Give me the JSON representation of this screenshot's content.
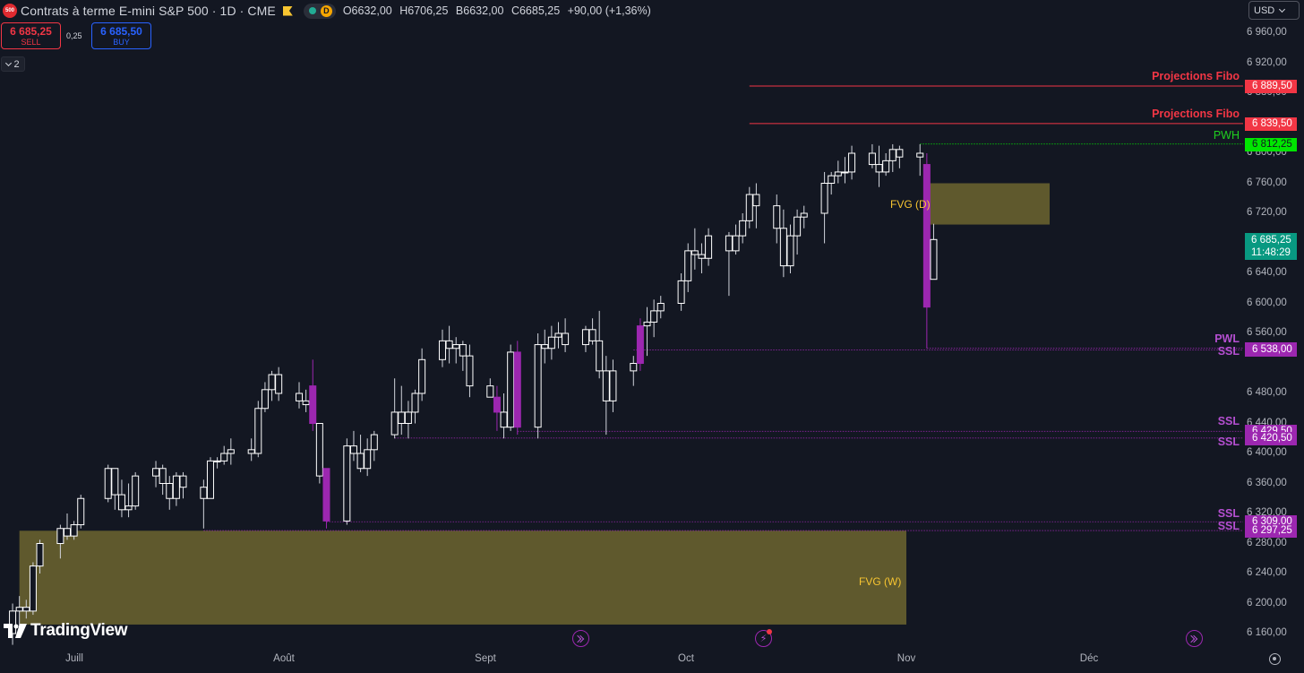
{
  "header": {
    "symbol_logo": "500",
    "title": "Contrats à terme E-mini S&P 500 · 1D · CME",
    "delay_badge": "D",
    "ohlc": {
      "o_label": "O",
      "o": "6632,00",
      "h_label": "H",
      "h": "6706,25",
      "l_label": "B",
      "l": "6632,00",
      "c_label": "C",
      "c": "6685,25",
      "change": "+90,00 (+1,36%)"
    }
  },
  "trade": {
    "sell_price": "6 685,25",
    "sell_label": "SELL",
    "spread": "0,25",
    "buy_price": "6 685,50",
    "buy_label": "BUY"
  },
  "indicators_toggle": "2",
  "currency": "USD",
  "axis": {
    "price_labels": [
      "6 960,00",
      "6 920,00",
      "6 880,00",
      "6 800,00",
      "6 760,00",
      "6 720,00",
      "6 640,00",
      "6 600,00",
      "6 560,00",
      "6 480,00",
      "6 440,00",
      "6 400,00",
      "6 360,00",
      "6 320,00",
      "6 280,00",
      "6 240,00",
      "6 200,00",
      "6 160,00"
    ],
    "time_labels": [
      "Juill",
      "Août",
      "Sept",
      "Oct",
      "Nov",
      "Déc"
    ]
  },
  "levels": [
    {
      "label": "Projections Fibo",
      "price": "6 889,50",
      "color": "#f23645"
    },
    {
      "label": "Projections Fibo",
      "price": "6 839,50",
      "color": "#f23645"
    },
    {
      "label": "PWH",
      "price": "6 812,25",
      "color": "#00ff00"
    },
    {
      "label": "PWL",
      "price": "6 540,25",
      "color": "#9c27b0"
    },
    {
      "label": "SSL",
      "price": "6 538,00",
      "color": "#9c27b0"
    },
    {
      "label": "SSL",
      "price": "6 429,50",
      "color": "#9c27b0"
    },
    {
      "label": "SSL",
      "price": "6 420,50",
      "color": "#9c27b0"
    },
    {
      "label": "SSL",
      "price": "6 309,00",
      "color": "#9c27b0"
    },
    {
      "label": "SSL",
      "price": "6 297,25",
      "color": "#9c27b0"
    }
  ],
  "current": {
    "price": "6 685,25",
    "countdown": "11:48:29",
    "color": "#089981"
  },
  "zones": {
    "fvg_daily": "FVG (D)",
    "fvg_weekly": "FVG (W)"
  },
  "brand": "TradingView",
  "chart_data": {
    "type": "candlestick",
    "timeframe": "1D",
    "ylim": [
      6140,
      6980
    ],
    "x_ticks": [
      "Juill",
      "Août",
      "Sept",
      "Oct",
      "Nov",
      "Déc"
    ],
    "candles": [
      {
        "date": "2025-06-23",
        "o": 6160,
        "h": 6200,
        "l": 6145,
        "c": 6190
      },
      {
        "date": "2025-06-24",
        "o": 6190,
        "h": 6210,
        "l": 6165,
        "c": 6195
      },
      {
        "date": "2025-06-25",
        "o": 6195,
        "h": 6205,
        "l": 6180,
        "c": 6190
      },
      {
        "date": "2025-06-26",
        "o": 6190,
        "h": 6255,
        "l": 6185,
        "c": 6250
      },
      {
        "date": "2025-06-27",
        "o": 6250,
        "h": 6285,
        "l": 6240,
        "c": 6280
      },
      {
        "date": "2025-06-30",
        "o": 6280,
        "h": 6305,
        "l": 6260,
        "c": 6300
      },
      {
        "date": "2025-07-01",
        "o": 6300,
        "h": 6320,
        "l": 6285,
        "c": 6290
      },
      {
        "date": "2025-07-02",
        "o": 6290,
        "h": 6310,
        "l": 6285,
        "c": 6305
      },
      {
        "date": "2025-07-03",
        "o": 6305,
        "h": 6345,
        "l": 6300,
        "c": 6340
      },
      {
        "date": "2025-07-07",
        "o": 6340,
        "h": 6385,
        "l": 6335,
        "c": 6380
      },
      {
        "date": "2025-07-08",
        "o": 6380,
        "h": 6380,
        "l": 6325,
        "c": 6345
      },
      {
        "date": "2025-07-09",
        "o": 6345,
        "h": 6365,
        "l": 6315,
        "c": 6325
      },
      {
        "date": "2025-07-10",
        "o": 6325,
        "h": 6360,
        "l": 6315,
        "c": 6330
      },
      {
        "date": "2025-07-11",
        "o": 6330,
        "h": 6375,
        "l": 6325,
        "c": 6370
      },
      {
        "date": "2025-07-14",
        "o": 6370,
        "h": 6390,
        "l": 6355,
        "c": 6380
      },
      {
        "date": "2025-07-15",
        "o": 6380,
        "h": 6385,
        "l": 6345,
        "c": 6360
      },
      {
        "date": "2025-07-16",
        "o": 6360,
        "h": 6370,
        "l": 6325,
        "c": 6340
      },
      {
        "date": "2025-07-17",
        "o": 6340,
        "h": 6375,
        "l": 6330,
        "c": 6370
      },
      {
        "date": "2025-07-18",
        "o": 6370,
        "h": 6375,
        "l": 6340,
        "c": 6355
      },
      {
        "date": "2025-07-21",
        "o": 6355,
        "h": 6365,
        "l": 6300,
        "c": 6340
      },
      {
        "date": "2025-07-22",
        "o": 6340,
        "h": 6395,
        "l": 6340,
        "c": 6390
      },
      {
        "date": "2025-07-23",
        "o": 6390,
        "h": 6395,
        "l": 6380,
        "c": 6390
      },
      {
        "date": "2025-07-24",
        "o": 6390,
        "h": 6410,
        "l": 6385,
        "c": 6400
      },
      {
        "date": "2025-07-25",
        "o": 6400,
        "h": 6420,
        "l": 6385,
        "c": 6405
      },
      {
        "date": "2025-07-28",
        "o": 6405,
        "h": 6420,
        "l": 6390,
        "c": 6400
      },
      {
        "date": "2025-07-29",
        "o": 6400,
        "h": 6470,
        "l": 6395,
        "c": 6460
      },
      {
        "date": "2025-07-30",
        "o": 6460,
        "h": 6495,
        "l": 6455,
        "c": 6485
      },
      {
        "date": "2025-07-31",
        "o": 6485,
        "h": 6510,
        "l": 6470,
        "c": 6505
      },
      {
        "date": "2025-08-01",
        "o": 6505,
        "h": 6515,
        "l": 6470,
        "c": 6480
      },
      {
        "date": "2025-08-04",
        "o": 6480,
        "h": 6495,
        "l": 6460,
        "c": 6470
      },
      {
        "date": "2025-08-05",
        "o": 6470,
        "h": 6485,
        "l": 6455,
        "c": 6465
      },
      {
        "date": "2025-08-06",
        "o": 6490,
        "h": 6525,
        "l": 6430,
        "c": 6440
      },
      {
        "date": "2025-08-07",
        "o": 6440,
        "h": 6440,
        "l": 6360,
        "c": 6370
      },
      {
        "date": "2025-08-08",
        "o": 6380,
        "h": 6380,
        "l": 6300,
        "c": 6310
      },
      {
        "date": "2025-08-11",
        "o": 6310,
        "h": 6420,
        "l": 6305,
        "c": 6410
      },
      {
        "date": "2025-08-12",
        "o": 6410,
        "h": 6430,
        "l": 6390,
        "c": 6400
      },
      {
        "date": "2025-08-13",
        "o": 6400,
        "h": 6425,
        "l": 6375,
        "c": 6380
      },
      {
        "date": "2025-08-14",
        "o": 6380,
        "h": 6420,
        "l": 6370,
        "c": 6405
      },
      {
        "date": "2025-08-15",
        "o": 6405,
        "h": 6430,
        "l": 6390,
        "c": 6425
      },
      {
        "date": "2025-08-18",
        "o": 6425,
        "h": 6500,
        "l": 6420,
        "c": 6455
      },
      {
        "date": "2025-08-19",
        "o": 6455,
        "h": 6490,
        "l": 6425,
        "c": 6440
      },
      {
        "date": "2025-08-20",
        "o": 6440,
        "h": 6470,
        "l": 6420,
        "c": 6455
      },
      {
        "date": "2025-08-21",
        "o": 6455,
        "h": 6485,
        "l": 6440,
        "c": 6480
      },
      {
        "date": "2025-08-22",
        "o": 6480,
        "h": 6540,
        "l": 6470,
        "c": 6525
      },
      {
        "date": "2025-08-25",
        "o": 6525,
        "h": 6565,
        "l": 6515,
        "c": 6550
      },
      {
        "date": "2025-08-26",
        "o": 6550,
        "h": 6570,
        "l": 6520,
        "c": 6540
      },
      {
        "date": "2025-08-27",
        "o": 6540,
        "h": 6555,
        "l": 6520,
        "c": 6545
      },
      {
        "date": "2025-08-28",
        "o": 6545,
        "h": 6550,
        "l": 6510,
        "c": 6530
      },
      {
        "date": "2025-08-29",
        "o": 6530,
        "h": 6545,
        "l": 6475,
        "c": 6490
      },
      {
        "date": "2025-09-01",
        "o": 6490,
        "h": 6500,
        "l": 6475,
        "c": 6475
      },
      {
        "date": "2025-09-02",
        "o": 6475,
        "h": 6490,
        "l": 6430,
        "c": 6455
      },
      {
        "date": "2025-09-03",
        "o": 6455,
        "h": 6480,
        "l": 6420,
        "c": 6435
      },
      {
        "date": "2025-09-04",
        "o": 6435,
        "h": 6545,
        "l": 6430,
        "c": 6535
      },
      {
        "date": "2025-09-05",
        "o": 6535,
        "h": 6550,
        "l": 6425,
        "c": 6435
      },
      {
        "date": "2025-09-08",
        "o": 6435,
        "h": 6560,
        "l": 6420,
        "c": 6545
      },
      {
        "date": "2025-09-09",
        "o": 6545,
        "h": 6565,
        "l": 6520,
        "c": 6540
      },
      {
        "date": "2025-09-10",
        "o": 6540,
        "h": 6570,
        "l": 6525,
        "c": 6555
      },
      {
        "date": "2025-09-11",
        "o": 6555,
        "h": 6575,
        "l": 6540,
        "c": 6560
      },
      {
        "date": "2025-09-12",
        "o": 6560,
        "h": 6580,
        "l": 6535,
        "c": 6545
      },
      {
        "date": "2025-09-15",
        "o": 6545,
        "h": 6570,
        "l": 6535,
        "c": 6565
      },
      {
        "date": "2025-09-16",
        "o": 6565,
        "h": 6580,
        "l": 6545,
        "c": 6550
      },
      {
        "date": "2025-09-17",
        "o": 6550,
        "h": 6590,
        "l": 6500,
        "c": 6510
      },
      {
        "date": "2025-09-18",
        "o": 6510,
        "h": 6530,
        "l": 6425,
        "c": 6470
      },
      {
        "date": "2025-09-19",
        "o": 6470,
        "h": 6525,
        "l": 6455,
        "c": 6510
      },
      {
        "date": "2025-09-22",
        "o": 6510,
        "h": 6530,
        "l": 6490,
        "c": 6520
      },
      {
        "date": "2025-09-23",
        "o": 6520,
        "h": 6580,
        "l": 6510,
        "c": 6570
      },
      {
        "date": "2025-09-24",
        "o": 6570,
        "h": 6595,
        "l": 6530,
        "c": 6575
      },
      {
        "date": "2025-09-25",
        "o": 6575,
        "h": 6605,
        "l": 6555,
        "c": 6590
      },
      {
        "date": "2025-09-26",
        "o": 6590,
        "h": 6610,
        "l": 6580,
        "c": 6600
      },
      {
        "date": "2025-09-29",
        "o": 6600,
        "h": 6640,
        "l": 6590,
        "c": 6630
      },
      {
        "date": "2025-09-30",
        "o": 6630,
        "h": 6680,
        "l": 6615,
        "c": 6670
      },
      {
        "date": "2025-10-01",
        "o": 6670,
        "h": 6700,
        "l": 6645,
        "c": 6665
      },
      {
        "date": "2025-10-02",
        "o": 6665,
        "h": 6680,
        "l": 6640,
        "c": 6660
      },
      {
        "date": "2025-10-03",
        "o": 6660,
        "h": 6700,
        "l": 6650,
        "c": 6690
      },
      {
        "date": "2025-10-06",
        "o": 6690,
        "h": 6695,
        "l": 6610,
        "c": 6670
      },
      {
        "date": "2025-10-07",
        "o": 6670,
        "h": 6705,
        "l": 6665,
        "c": 6690
      },
      {
        "date": "2025-10-08",
        "o": 6690,
        "h": 6720,
        "l": 6680,
        "c": 6710
      },
      {
        "date": "2025-10-09",
        "o": 6710,
        "h": 6755,
        "l": 6700,
        "c": 6745
      },
      {
        "date": "2025-10-10",
        "o": 6745,
        "h": 6760,
        "l": 6700,
        "c": 6730
      },
      {
        "date": "2025-10-13",
        "o": 6730,
        "h": 6745,
        "l": 6680,
        "c": 6700
      },
      {
        "date": "2025-10-14",
        "o": 6700,
        "h": 6725,
        "l": 6635,
        "c": 6650
      },
      {
        "date": "2025-10-15",
        "o": 6650,
        "h": 6705,
        "l": 6640,
        "c": 6690
      },
      {
        "date": "2025-10-16",
        "o": 6690,
        "h": 6725,
        "l": 6665,
        "c": 6715
      },
      {
        "date": "2025-10-17",
        "o": 6715,
        "h": 6730,
        "l": 6700,
        "c": 6720
      },
      {
        "date": "2025-10-20",
        "o": 6720,
        "h": 6775,
        "l": 6680,
        "c": 6760
      },
      {
        "date": "2025-10-21",
        "o": 6760,
        "h": 6775,
        "l": 6745,
        "c": 6770
      },
      {
        "date": "2025-10-22",
        "o": 6770,
        "h": 6790,
        "l": 6760,
        "c": 6775
      },
      {
        "date": "2025-10-23",
        "o": 6775,
        "h": 6795,
        "l": 6760,
        "c": 6775
      },
      {
        "date": "2025-10-24",
        "o": 6775,
        "h": 6810,
        "l": 6765,
        "c": 6800
      },
      {
        "date": "2025-10-27",
        "o": 6800,
        "h": 6812,
        "l": 6780,
        "c": 6785
      },
      {
        "date": "2025-10-28",
        "o": 6785,
        "h": 6810,
        "l": 6755,
        "c": 6775
      },
      {
        "date": "2025-10-29",
        "o": 6775,
        "h": 6800,
        "l": 6770,
        "c": 6790
      },
      {
        "date": "2025-10-30",
        "o": 6790,
        "h": 6812,
        "l": 6775,
        "c": 6805
      },
      {
        "date": "2025-10-31",
        "o": 6805,
        "h": 6810,
        "l": 6780,
        "c": 6795
      },
      {
        "date": "2025-11-03",
        "o": 6795,
        "h": 6812,
        "l": 6770,
        "c": 6800
      },
      {
        "date": "2025-11-04",
        "o": 6785,
        "h": 6800,
        "l": 6540,
        "c": 6595
      },
      {
        "date": "2025-11-05",
        "o": 6632,
        "h": 6706,
        "l": 6632,
        "c": 6685
      }
    ],
    "highlighted_purple_dates": [
      "2025-08-06",
      "2025-08-08",
      "2025-09-02",
      "2025-09-05",
      "2025-09-23",
      "2025-11-04"
    ],
    "fvg_zones": [
      {
        "label": "FVG (D)",
        "from": "2025-11-04",
        "to": "2025-11-22",
        "price_low": 6705,
        "price_high": 6760
      },
      {
        "label": "FVG (W)",
        "from": "2025-06-24",
        "to": "2025-11-01",
        "price_low": 6172,
        "price_high": 6297
      }
    ],
    "horizontal_levels": [
      {
        "label": "Projections Fibo",
        "price": 6889.5,
        "from": "2025-10-09"
      },
      {
        "label": "Projections Fibo",
        "price": 6839.5,
        "from": "2025-10-09"
      },
      {
        "label": "PWH",
        "price": 6812.25,
        "from": "2025-11-03"
      },
      {
        "label": "PWL",
        "price": 6540.25,
        "from": "2025-11-04"
      },
      {
        "label": "SSL",
        "price": 6538.0,
        "from": "2025-09-22"
      },
      {
        "label": "SSL",
        "price": 6429.5,
        "from": "2025-09-05"
      },
      {
        "label": "SSL",
        "price": 6420.5,
        "from": "2025-08-18"
      },
      {
        "label": "SSL",
        "price": 6309.0,
        "from": "2025-08-08"
      },
      {
        "label": "SSL",
        "price": 6297.25,
        "from": "2025-07-21"
      }
    ]
  }
}
